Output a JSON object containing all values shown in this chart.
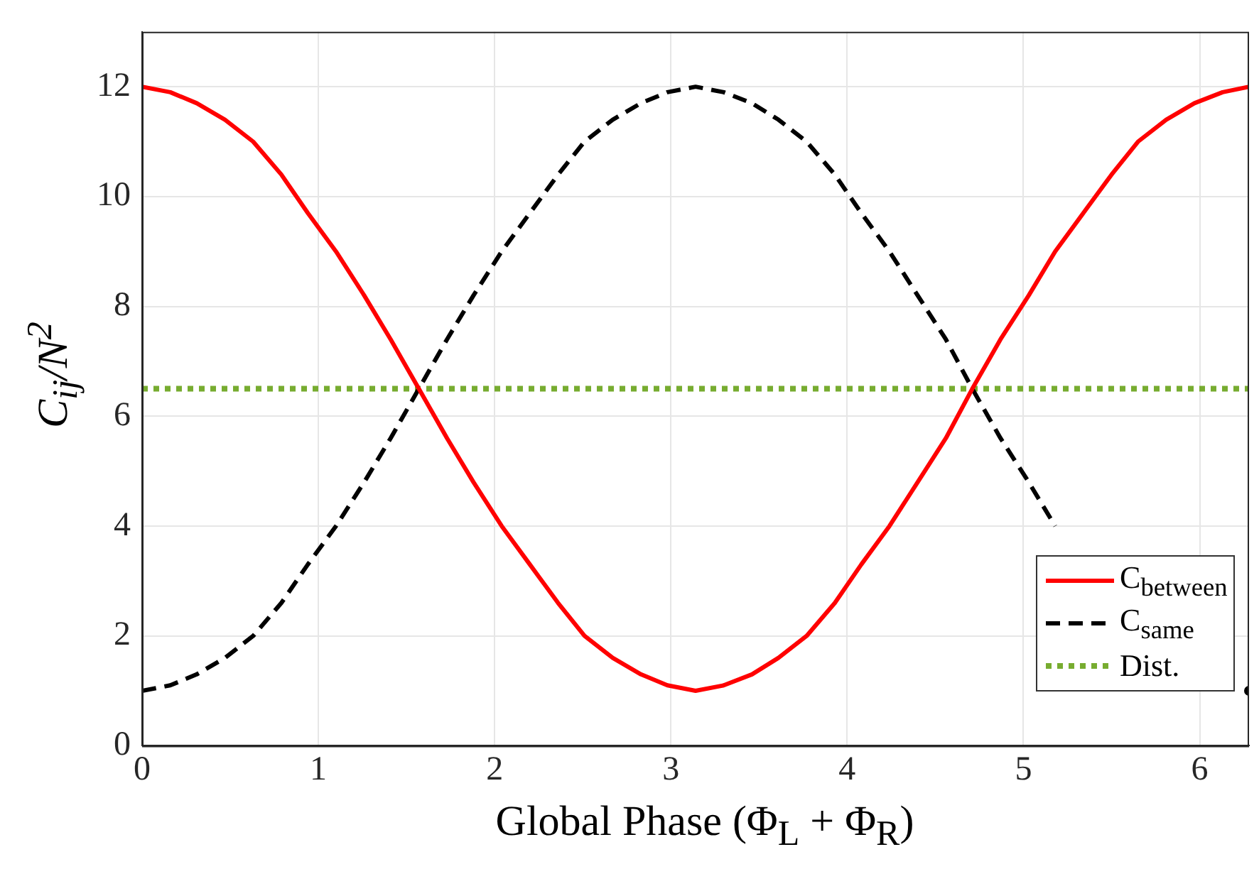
{
  "chart_data": {
    "type": "line",
    "xlabel": "Global Phase (Φ$_{L}$ + Φ$_{R}$)",
    "ylabel": "C$_{ij}$/N$^{2}$",
    "x": [
      0,
      0.16,
      0.31,
      0.47,
      0.63,
      0.79,
      0.94,
      1.1,
      1.26,
      1.41,
      1.57,
      1.73,
      1.88,
      2.04,
      2.2,
      2.36,
      2.51,
      2.67,
      2.83,
      2.98,
      3.14,
      3.3,
      3.46,
      3.61,
      3.77,
      3.93,
      4.08,
      4.24,
      4.4,
      4.56,
      4.71,
      4.87,
      5.03,
      5.18,
      5.34,
      5.5,
      5.65,
      5.81,
      5.97,
      6.13,
      6.28
    ],
    "series": [
      {
        "name": "C$_{between}$",
        "color": "#ff0000",
        "line_style": "solid",
        "values": [
          12,
          11.9,
          11.7,
          11.4,
          11,
          10.4,
          9.7,
          9,
          8.2,
          7.4,
          6.5,
          5.6,
          4.8,
          4,
          3.3,
          2.6,
          2,
          1.6,
          1.3,
          1.1,
          1,
          1.1,
          1.3,
          1.6,
          2,
          2.6,
          3.3,
          4,
          4.8,
          5.6,
          6.5,
          7.4,
          8.2,
          9,
          9.7,
          10.4,
          11,
          11.4,
          11.7,
          11.9,
          12
        ]
      },
      {
        "name": "C$_{same}$",
        "color": "#000000",
        "line_style": "dashed",
        "values": [
          1,
          1.1,
          1.3,
          1.6,
          2,
          2.6,
          3.3,
          4,
          4.8,
          5.6,
          6.5,
          7.4,
          8.2,
          9,
          9.7,
          10.4,
          11,
          11.4,
          11.7,
          11.9,
          12,
          11.9,
          11.7,
          11.4,
          11,
          10.4,
          9.7,
          9,
          8.2,
          7.4,
          6.5,
          5.6,
          4.8,
          4,
          null,
          null,
          null,
          null,
          null,
          null,
          1
        ]
      },
      {
        "name": "Dist.",
        "color": "#77ac30",
        "line_style": "dotted",
        "x": [
          0,
          6.28
        ],
        "values": [
          6.5,
          6.5
        ]
      }
    ],
    "xlim": [
      0,
      6.28
    ],
    "xticks": [
      0,
      1,
      2,
      3,
      4,
      5,
      6
    ],
    "ylim": [
      0,
      13
    ],
    "yticks": [
      0,
      2,
      4,
      6,
      8,
      10,
      12
    ],
    "grid": true,
    "legend": "bottom right",
    "marker": "none"
  }
}
